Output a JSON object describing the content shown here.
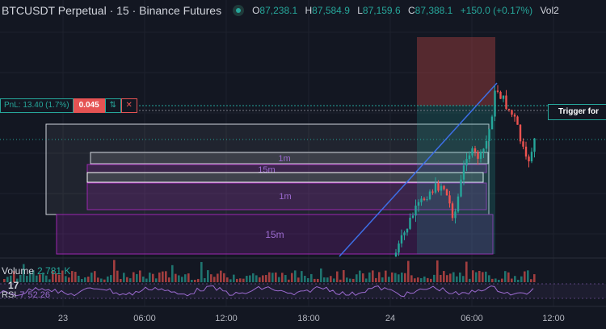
{
  "legend": {
    "symbol": "BTCUSDT Perpetual · 15 · Binance Futures",
    "o_label": "O",
    "o": "87,238.1",
    "h_label": "H",
    "h": "87,584.9",
    "l_label": "L",
    "l": "87,159.6",
    "c_label": "C",
    "c": "87,388.1",
    "change": "+150.0 (+0.17%)",
    "vol_label": "Vol2"
  },
  "position": {
    "pnl": "PnL: 13.40 (1.7%)",
    "qty": "0.045",
    "reverse_icon": "⇅",
    "close_icon": "✕"
  },
  "trigger_label": "Trigger for",
  "volume": {
    "label": "Volume",
    "value": "2.781 K"
  },
  "rsi": {
    "label": "RSI",
    "params": "7",
    "value": "52.26"
  },
  "zones": [
    {
      "label": "1m"
    },
    {
      "label": "15m"
    },
    {
      "label": "1m"
    },
    {
      "label": "15m"
    }
  ],
  "time_axis": [
    "23",
    "06:00",
    "12:00",
    "18:00",
    "24",
    "06:00",
    "12:00"
  ],
  "colors": {
    "up": "#26a69a",
    "down": "#ef5350",
    "rsi": "#9c6bd0",
    "trendline": "#3d6fe6"
  }
}
